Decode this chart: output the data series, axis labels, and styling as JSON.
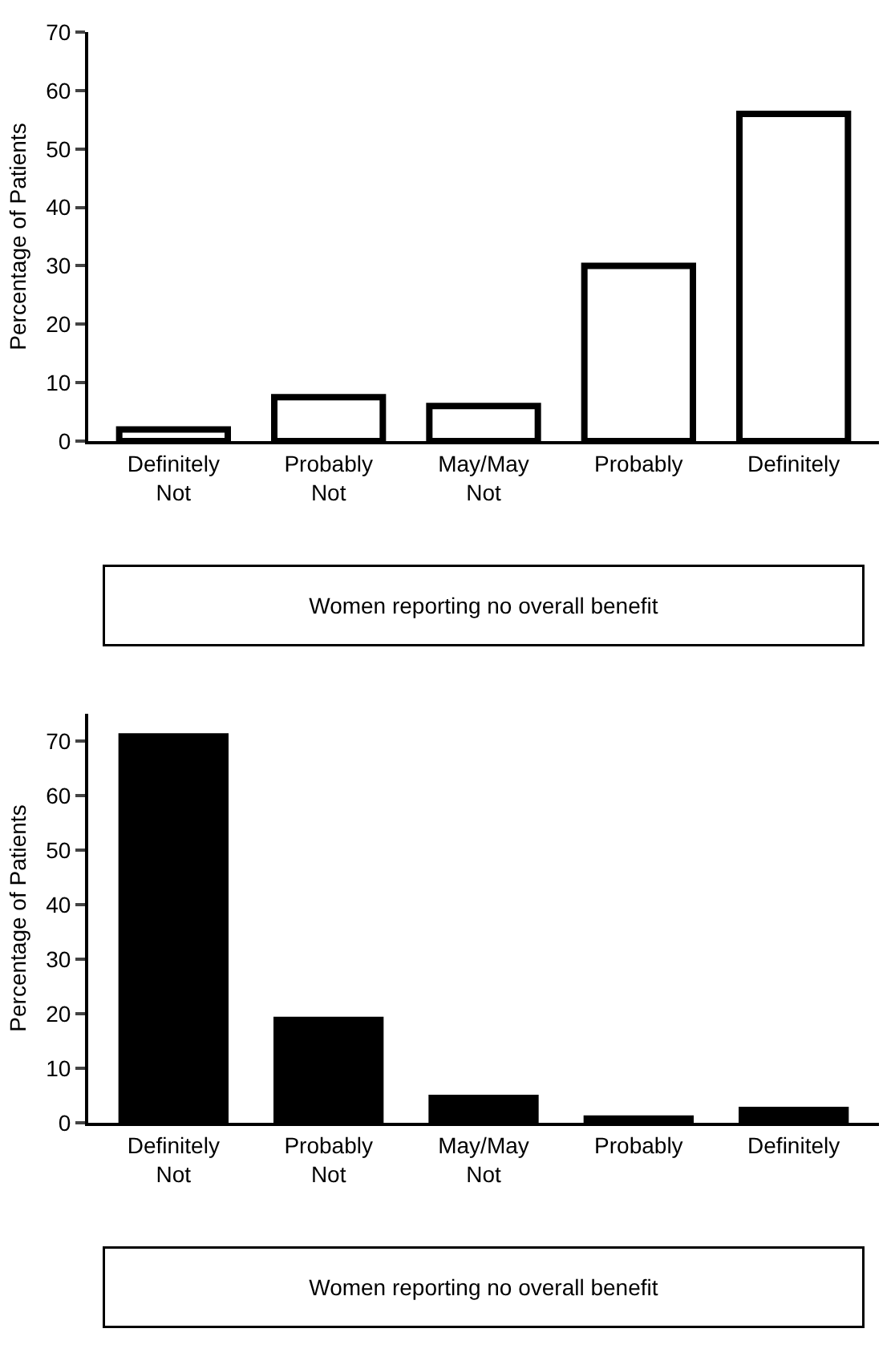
{
  "chart_data": [
    {
      "type": "bar",
      "ylabel": "Percentage of Patients",
      "categories": [
        "Definitely Not",
        "Probably Not",
        "May/May Not",
        "Probably",
        "Definitely"
      ],
      "series": [
        {
          "color": "#ffffff",
          "values": [
            2,
            7.5,
            6,
            30,
            56
          ]
        }
      ],
      "ylim": [
        0,
        70
      ],
      "yticks": [
        0,
        10,
        20,
        30,
        40,
        50,
        60,
        70
      ],
      "grid": false,
      "annotations": [
        "Women reporting no overall benefit"
      ]
    },
    {
      "type": "bar",
      "ylabel": "Percentage of Patients",
      "categories": [
        "Definitely Not",
        "Probably Not",
        "May/May Not",
        "Probably",
        "Definitely"
      ],
      "series": [
        {
          "color": "#000000",
          "values": [
            71.3,
            19.3,
            5,
            1.2,
            2.8
          ]
        }
      ],
      "ylim": [
        0,
        75
      ],
      "yticks": [
        0,
        10,
        20,
        30,
        40,
        50,
        60,
        70
      ],
      "grid": false,
      "annotations": [
        "Women reporting no overall benefit"
      ]
    }
  ]
}
